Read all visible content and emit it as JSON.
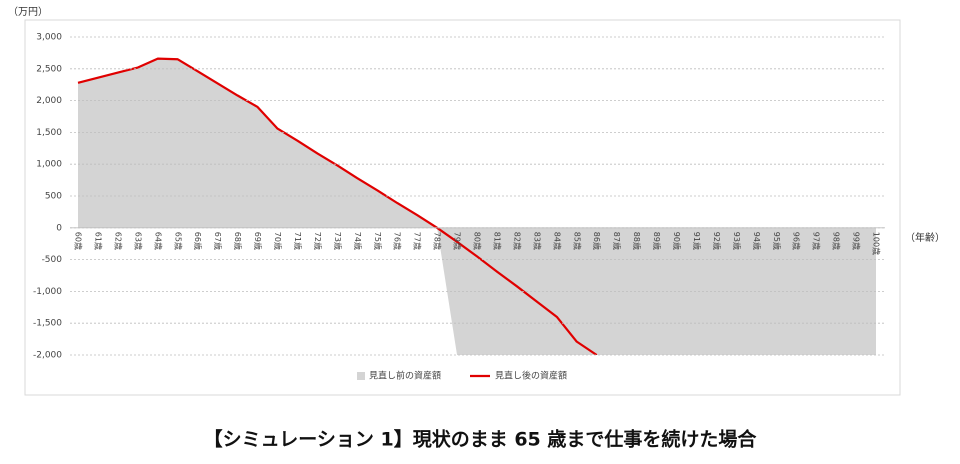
{
  "chart_data": {
    "type": "area",
    "y_label": "（万円）",
    "x_label": "（年齢）",
    "caption": "【シミュレーション 1】現状のまま 65 歳まで仕事を続けた場合",
    "categories": [
      "60歳",
      "61歳",
      "62歳",
      "63歳",
      "64歳",
      "65歳",
      "66歳",
      "67歳",
      "68歳",
      "69歳",
      "70歳",
      "71歳",
      "72歳",
      "73歳",
      "74歳",
      "75歳",
      "76歳",
      "77歳",
      "78歳",
      "79歳",
      "80歳",
      "81歳",
      "82歳",
      "83歳",
      "84歳",
      "85歳",
      "86歳",
      "87歳",
      "88歳",
      "89歳",
      "90歳",
      "91歳",
      "92歳",
      "93歳",
      "94歳",
      "95歳",
      "96歳",
      "97歳",
      "98歳",
      "99歳",
      "100歳"
    ],
    "series": [
      {
        "name": "見直し前の資産額",
        "type": "area",
        "color": "#d4d4d4",
        "values": [
          2280,
          2360,
          2440,
          2520,
          2660,
          2650,
          2460,
          2270,
          2080,
          1900,
          1560,
          1370,
          1170,
          980,
          780,
          590,
          390,
          200,
          0,
          -2000,
          -2000,
          -2000,
          -2000,
          -2000,
          -2000,
          -2000,
          -2000,
          -2000,
          -2000,
          -2000,
          -2000,
          -2000,
          -2000,
          -2000,
          -2000,
          -2000,
          -2000,
          -2000,
          -2000,
          -2000,
          -2000
        ]
      },
      {
        "name": "見直し後の資産額",
        "type": "line",
        "color": "#e00000",
        "values": [
          2280,
          2360,
          2440,
          2520,
          2660,
          2650,
          2460,
          2270,
          2080,
          1900,
          1560,
          1370,
          1170,
          980,
          780,
          590,
          390,
          200,
          0,
          -220,
          -450,
          -690,
          -920,
          -1160,
          -1400,
          -1790,
          -2000,
          null,
          null,
          null,
          null,
          null,
          null,
          null,
          null,
          null,
          null,
          null,
          null,
          null,
          null
        ]
      }
    ],
    "ylim": [
      -2000,
      3000
    ],
    "yticks": [
      {
        "value": -2000,
        "label": "-2,000"
      },
      {
        "value": -1500,
        "label": "-1,500"
      },
      {
        "value": -1000,
        "label": "-1,000"
      },
      -500,
      0,
      500,
      {
        "value": 1000,
        "label": "1,000"
      },
      {
        "value": 1500,
        "label": "1,500"
      },
      {
        "value": 2000,
        "label": "2,000"
      },
      {
        "value": 2500,
        "label": "2,500"
      },
      {
        "value": 3000,
        "label": "3,000"
      }
    ],
    "grid": true
  }
}
